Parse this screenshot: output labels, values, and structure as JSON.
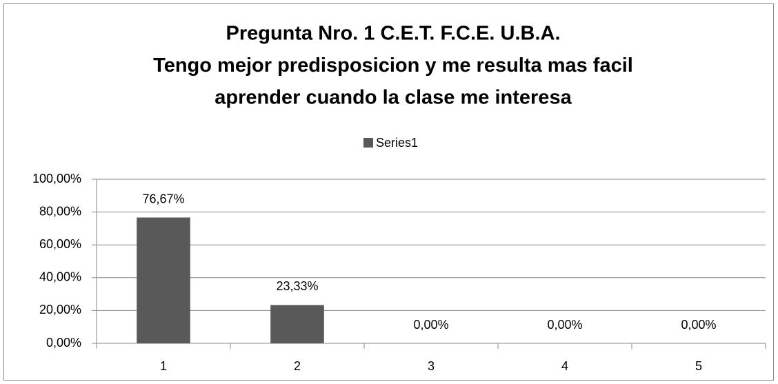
{
  "chart_data": {
    "type": "bar",
    "title": [
      "Pregunta Nro. 1 C.E.T. F.C.E. U.B.A.",
      "Tengo mejor predisposicion y me resulta mas facil",
      "aprender cuando la clase me interesa"
    ],
    "categories": [
      "1",
      "2",
      "3",
      "4",
      "5"
    ],
    "series": [
      {
        "name": "Series1",
        "color": "#595959",
        "values": [
          76.67,
          23.33,
          0,
          0,
          0
        ],
        "value_labels": [
          "76,67%",
          "23,33%",
          "0,00%",
          "0,00%",
          "0,00%"
        ]
      }
    ],
    "ylim": [
      0,
      100
    ],
    "yticks": [
      {
        "value": 0,
        "label": "0,00%"
      },
      {
        "value": 20,
        "label": "20,00%"
      },
      {
        "value": 40,
        "label": "40,00%"
      },
      {
        "value": 60,
        "label": "60,00%"
      },
      {
        "value": 80,
        "label": "80,00%"
      },
      {
        "value": 100,
        "label": "100,00%"
      }
    ],
    "grid": true,
    "legend": "top"
  }
}
